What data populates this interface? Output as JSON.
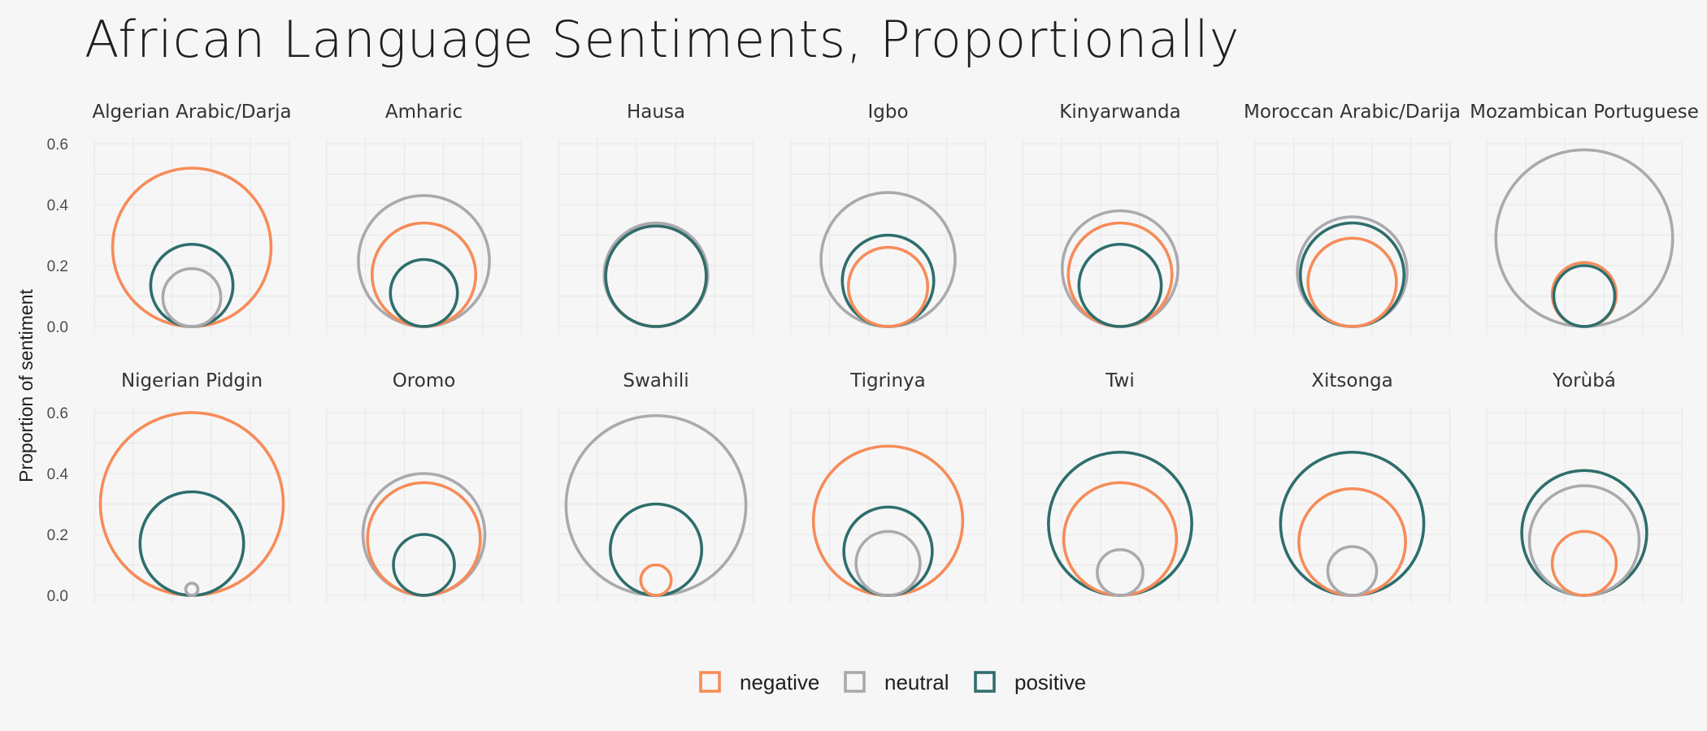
{
  "chart_data": {
    "type": "bubble-circles",
    "title": "African Language Sentiments, Proportionally",
    "ylabel": "Proportion of sentiment",
    "xlabel": "",
    "ylim": [
      0,
      0.62
    ],
    "yticks": [
      "0.0",
      "0.2",
      "0.4",
      "0.6"
    ],
    "grid": true,
    "legend_position": "bottom",
    "series": [
      {
        "name": "negative",
        "color": "#f78b58"
      },
      {
        "name": "neutral",
        "color": "#a9a9ae"
      },
      {
        "name": "positive",
        "color": "#2e6e6c"
      }
    ],
    "facets": [
      {
        "name": "Algerian Arabic/Darja",
        "negative": 0.52,
        "neutral": 0.19,
        "positive": 0.27
      },
      {
        "name": "Amharic",
        "negative": 0.34,
        "neutral": 0.43,
        "positive": 0.22
      },
      {
        "name": "Hausa",
        "negative": 0.33,
        "neutral": 0.34,
        "positive": 0.33
      },
      {
        "name": "Igbo",
        "negative": 0.26,
        "neutral": 0.44,
        "positive": 0.3
      },
      {
        "name": "Kinyarwanda",
        "negative": 0.34,
        "neutral": 0.38,
        "positive": 0.27
      },
      {
        "name": "Moroccan Arabic/Darija",
        "negative": 0.29,
        "neutral": 0.36,
        "positive": 0.34
      },
      {
        "name": "Mozambican Portuguese",
        "negative": 0.21,
        "neutral": 0.58,
        "positive": 0.2
      },
      {
        "name": "Nigerian Pidgin",
        "negative": 0.6,
        "neutral": 0.04,
        "positive": 0.34
      },
      {
        "name": "Oromo",
        "negative": 0.37,
        "neutral": 0.4,
        "positive": 0.2
      },
      {
        "name": "Swahili",
        "negative": 0.1,
        "neutral": 0.59,
        "positive": 0.3
      },
      {
        "name": "Tigrinya",
        "negative": 0.49,
        "neutral": 0.21,
        "positive": 0.29
      },
      {
        "name": "Twi",
        "negative": 0.37,
        "neutral": 0.15,
        "positive": 0.47
      },
      {
        "name": "Xitsonga",
        "negative": 0.35,
        "neutral": 0.16,
        "positive": 0.47
      },
      {
        "name": "Yorùbá",
        "negative": 0.21,
        "neutral": 0.36,
        "positive": 0.41
      }
    ]
  }
}
